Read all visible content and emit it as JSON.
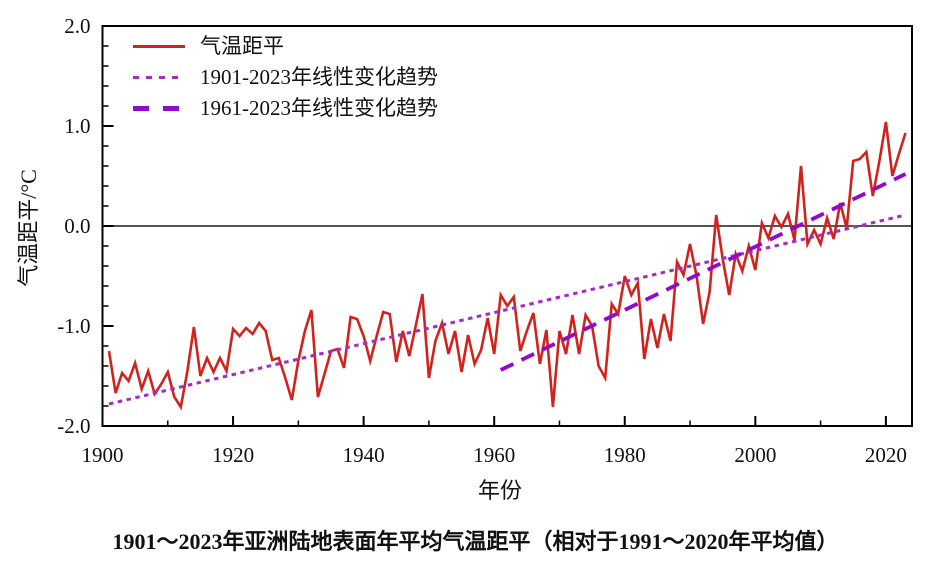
{
  "figure": {
    "caption": "1901～2023年亚洲陆地表面年平均气温距平（相对于1991～2020年平均值）"
  },
  "legend": {
    "position": "top-left",
    "items": [
      {
        "label": "气温距平",
        "style": "solid",
        "color": "#d0231d"
      },
      {
        "label": "1901-2023年线性变化趋势",
        "style": "dotted",
        "color": "#a42cc4"
      },
      {
        "label": "1961-2023年线性变化趋势",
        "style": "dashed",
        "color": "#9208cd"
      }
    ]
  },
  "chart_data": {
    "type": "line",
    "title": "",
    "xlabel": "年份",
    "ylabel": "气温距平/°C",
    "xlim": [
      1900,
      2024
    ],
    "ylim": [
      -2.0,
      2.0
    ],
    "grid": false,
    "legend_position": "top-left",
    "x_major_ticks": [
      1900,
      1920,
      1940,
      1960,
      1980,
      2000,
      2020
    ],
    "x_tick_labels": [
      "1900",
      "1920",
      "1940",
      "1960",
      "1980",
      "2000",
      "2020"
    ],
    "x_minor_ticks": [
      1910,
      1930,
      1950,
      1970,
      1990,
      2010
    ],
    "y_major_ticks": [
      -2.0,
      -1.0,
      0.0,
      1.0,
      2.0
    ],
    "y_tick_labels": [
      "-2.0",
      "-1.0",
      "0.0",
      "1.0",
      "2.0"
    ],
    "y_minor_step": 0.2,
    "zero_line": 0.0,
    "series": [
      {
        "name": "气温距平",
        "line_style": "solid",
        "color": "#d0231d",
        "x_start": 1901,
        "x_step": 1,
        "values": [
          -1.25,
          -1.67,
          -1.47,
          -1.55,
          -1.37,
          -1.63,
          -1.45,
          -1.68,
          -1.58,
          -1.46,
          -1.71,
          -1.81,
          -1.45,
          -1.01,
          -1.5,
          -1.32,
          -1.46,
          -1.32,
          -1.45,
          -1.03,
          -1.1,
          -1.02,
          -1.08,
          -0.97,
          -1.05,
          -1.34,
          -1.32,
          -1.52,
          -1.74,
          -1.35,
          -1.05,
          -0.84,
          -1.71,
          -1.48,
          -1.25,
          -1.23,
          -1.42,
          -0.91,
          -0.93,
          -1.1,
          -1.35,
          -1.1,
          -0.86,
          -0.88,
          -1.36,
          -1.05,
          -1.3,
          -0.99,
          -0.68,
          -1.52,
          -1.15,
          -0.97,
          -1.28,
          -1.05,
          -1.46,
          -1.09,
          -1.38,
          -1.24,
          -0.92,
          -1.28,
          -0.69,
          -0.8,
          -0.71,
          -1.25,
          -1.05,
          -0.87,
          -1.38,
          -1.04,
          -1.81,
          -1.05,
          -1.28,
          -0.89,
          -1.28,
          -0.89,
          -1.0,
          -1.4,
          -1.52,
          -0.78,
          -0.88,
          -0.5,
          -0.69,
          -0.57,
          -1.33,
          -0.93,
          -1.22,
          -0.88,
          -1.15,
          -0.36,
          -0.49,
          -0.18,
          -0.5,
          -0.98,
          -0.66,
          0.11,
          -0.33,
          -0.69,
          -0.28,
          -0.45,
          -0.2,
          -0.44,
          0.03,
          -0.12,
          0.1,
          -0.01,
          0.12,
          -0.14,
          0.6,
          -0.18,
          -0.04,
          -0.18,
          0.08,
          -0.13,
          0.23,
          -0.02,
          0.65,
          0.67,
          0.74,
          0.3,
          0.65,
          1.04,
          0.5,
          0.72,
          0.93
        ]
      },
      {
        "name": "1901-2023年线性变化趋势",
        "line_style": "dotted",
        "color": "#a42cc4",
        "points": [
          [
            1901,
            -1.78
          ],
          [
            2023,
            0.11
          ]
        ]
      },
      {
        "name": "1961-2023年线性变化趋势",
        "line_style": "dashed",
        "color": "#9208cd",
        "points": [
          [
            1961,
            -1.44
          ],
          [
            2023,
            0.52
          ]
        ]
      }
    ]
  }
}
